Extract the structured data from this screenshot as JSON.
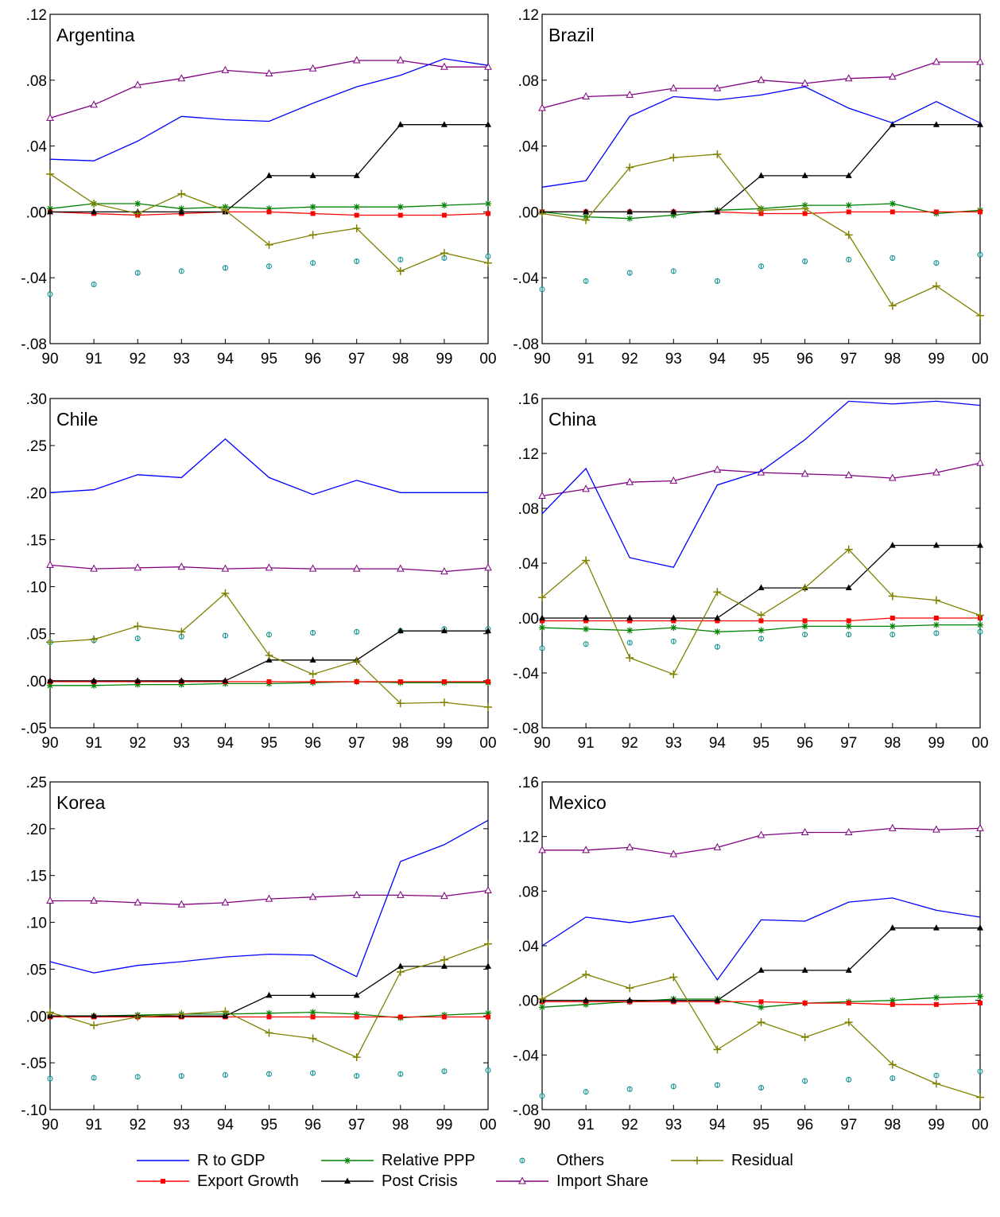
{
  "chart_data": [
    {
      "type": "line",
      "title": "Argentina",
      "categories": [
        "90",
        "91",
        "92",
        "93",
        "94",
        "95",
        "96",
        "97",
        "98",
        "99",
        "00"
      ],
      "ylim": [
        -0.08,
        0.12
      ],
      "yticks": [
        ".12",
        ".08",
        ".04",
        ".00",
        "-.04",
        "-.08"
      ],
      "ytick_values": [
        0.12,
        0.08,
        0.04,
        0.0,
        -0.04,
        -0.08
      ],
      "series": [
        {
          "name": "R to GDP",
          "values": [
            0.032,
            0.031,
            0.043,
            0.058,
            0.056,
            0.055,
            0.066,
            0.076,
            0.083,
            0.093,
            0.089
          ]
        },
        {
          "name": "Export Growth",
          "values": [
            0.0,
            -0.001,
            -0.002,
            -0.001,
            0.0,
            0.0,
            -0.001,
            -0.002,
            -0.002,
            -0.002,
            -0.001
          ]
        },
        {
          "name": "Relative PPP",
          "values": [
            0.002,
            0.005,
            0.005,
            0.002,
            0.003,
            0.002,
            0.003,
            0.003,
            0.003,
            0.004,
            0.005
          ]
        },
        {
          "name": "Post Crisis",
          "values": [
            0,
            0,
            0,
            0,
            0,
            0.022,
            0.022,
            0.022,
            0.053,
            0.053,
            0.053
          ]
        },
        {
          "name": "Others",
          "values": [
            -0.05,
            -0.044,
            -0.037,
            -0.036,
            -0.034,
            -0.033,
            -0.031,
            -0.03,
            -0.029,
            -0.028,
            -0.027
          ]
        },
        {
          "name": "Import Share",
          "values": [
            0.057,
            0.065,
            0.077,
            0.081,
            0.086,
            0.084,
            0.087,
            0.092,
            0.092,
            0.088,
            0.088
          ]
        },
        {
          "name": "Residual",
          "values": [
            0.023,
            0.005,
            -0.001,
            0.011,
            0.001,
            -0.02,
            -0.014,
            -0.01,
            -0.036,
            -0.025,
            -0.031
          ]
        }
      ]
    },
    {
      "type": "line",
      "title": "Brazil",
      "categories": [
        "90",
        "91",
        "92",
        "93",
        "94",
        "95",
        "96",
        "97",
        "98",
        "99",
        "00"
      ],
      "ylim": [
        -0.08,
        0.12
      ],
      "yticks": [
        ".12",
        ".08",
        ".04",
        ".00",
        "-.04",
        "-.08"
      ],
      "ytick_values": [
        0.12,
        0.08,
        0.04,
        0.0,
        -0.04,
        -0.08
      ],
      "series": [
        {
          "name": "R to GDP",
          "values": [
            0.015,
            0.019,
            0.058,
            0.07,
            0.068,
            0.071,
            0.076,
            0.063,
            0.054,
            0.067,
            0.054
          ]
        },
        {
          "name": "Export Growth",
          "values": [
            0.0,
            0.0,
            0.0,
            0.0,
            0.0,
            -0.001,
            -0.001,
            0.0,
            0.0,
            0.0,
            0.0
          ]
        },
        {
          "name": "Relative PPP",
          "values": [
            0.0,
            -0.003,
            -0.004,
            -0.002,
            0.001,
            0.002,
            0.004,
            0.004,
            0.005,
            -0.001,
            0.001
          ]
        },
        {
          "name": "Post Crisis",
          "values": [
            0,
            0,
            0,
            0,
            0,
            0.022,
            0.022,
            0.022,
            0.053,
            0.053,
            0.053
          ]
        },
        {
          "name": "Others",
          "values": [
            -0.047,
            -0.042,
            -0.037,
            -0.036,
            -0.042,
            -0.033,
            -0.03,
            -0.029,
            -0.028,
            -0.031,
            -0.026
          ]
        },
        {
          "name": "Import Share",
          "values": [
            0.063,
            0.07,
            0.071,
            0.075,
            0.075,
            0.08,
            0.078,
            0.081,
            0.082,
            0.091,
            0.091
          ]
        },
        {
          "name": "Residual",
          "values": [
            -0.001,
            -0.005,
            0.027,
            0.033,
            0.035,
            0.001,
            0.002,
            -0.014,
            -0.057,
            -0.045,
            -0.063
          ]
        }
      ]
    },
    {
      "type": "line",
      "title": "Chile",
      "categories": [
        "90",
        "91",
        "92",
        "93",
        "94",
        "95",
        "96",
        "97",
        "98",
        "99",
        "00"
      ],
      "ylim": [
        -0.05,
        0.3
      ],
      "yticks": [
        ".30",
        ".25",
        ".20",
        ".15",
        ".10",
        ".05",
        ".00",
        "-.05"
      ],
      "ytick_values": [
        0.3,
        0.25,
        0.2,
        0.15,
        0.1,
        0.05,
        0.0,
        -0.05
      ],
      "series": [
        {
          "name": "R to GDP",
          "values": [
            0.2,
            0.203,
            0.219,
            0.216,
            0.257,
            0.216,
            0.198,
            0.213,
            0.2,
            0.2,
            0.2
          ]
        },
        {
          "name": "Export Growth",
          "values": [
            -0.001,
            -0.001,
            -0.001,
            -0.001,
            -0.001,
            -0.001,
            -0.001,
            -0.001,
            -0.001,
            -0.001,
            -0.001
          ]
        },
        {
          "name": "Relative PPP",
          "values": [
            -0.005,
            -0.005,
            -0.004,
            -0.004,
            -0.003,
            -0.003,
            -0.002,
            -0.001,
            -0.002,
            -0.002,
            -0.002
          ]
        },
        {
          "name": "Post Crisis",
          "values": [
            0,
            0,
            0,
            0,
            0,
            0.022,
            0.022,
            0.022,
            0.053,
            0.053,
            0.053
          ]
        },
        {
          "name": "Others",
          "values": [
            0.041,
            0.043,
            0.045,
            0.047,
            0.048,
            0.049,
            0.051,
            0.052,
            0.053,
            0.055,
            0.055
          ]
        },
        {
          "name": "Import Share",
          "values": [
            0.123,
            0.119,
            0.12,
            0.121,
            0.119,
            0.12,
            0.119,
            0.119,
            0.119,
            0.116,
            0.12
          ]
        },
        {
          "name": "Residual",
          "values": [
            0.041,
            0.044,
            0.058,
            0.052,
            0.093,
            0.027,
            0.007,
            0.021,
            -0.024,
            -0.023,
            -0.028
          ]
        }
      ]
    },
    {
      "type": "line",
      "title": "China",
      "categories": [
        "90",
        "91",
        "92",
        "93",
        "94",
        "95",
        "96",
        "97",
        "98",
        "99",
        "00"
      ],
      "ylim": [
        -0.08,
        0.16
      ],
      "yticks": [
        ".16",
        ".12",
        ".08",
        ".04",
        ".00",
        "-.04",
        "-.08"
      ],
      "ytick_values": [
        0.16,
        0.12,
        0.08,
        0.04,
        0.0,
        -0.04,
        -0.08
      ],
      "series": [
        {
          "name": "R to GDP",
          "values": [
            0.076,
            0.109,
            0.044,
            0.037,
            0.097,
            0.107,
            0.13,
            0.158,
            0.156,
            0.158,
            0.155
          ]
        },
        {
          "name": "Export Growth",
          "values": [
            -0.002,
            -0.002,
            -0.002,
            -0.002,
            -0.002,
            -0.002,
            -0.002,
            -0.002,
            0.0,
            0.0,
            0.0
          ]
        },
        {
          "name": "Relative PPP",
          "values": [
            -0.007,
            -0.008,
            -0.009,
            -0.007,
            -0.01,
            -0.009,
            -0.006,
            -0.006,
            -0.006,
            -0.005,
            -0.005
          ]
        },
        {
          "name": "Post Crisis",
          "values": [
            0,
            0,
            0,
            0,
            0,
            0.022,
            0.022,
            0.022,
            0.053,
            0.053,
            0.053
          ]
        },
        {
          "name": "Others",
          "values": [
            -0.022,
            -0.019,
            -0.018,
            -0.017,
            -0.021,
            -0.015,
            -0.012,
            -0.012,
            -0.012,
            -0.011,
            -0.01
          ]
        },
        {
          "name": "Import Share",
          "values": [
            0.089,
            0.094,
            0.099,
            0.1,
            0.108,
            0.106,
            0.105,
            0.104,
            0.102,
            0.106,
            0.113
          ]
        },
        {
          "name": "Residual",
          "values": [
            0.015,
            0.042,
            -0.029,
            -0.041,
            0.019,
            0.002,
            0.022,
            0.05,
            0.016,
            0.013,
            0.002
          ]
        }
      ]
    },
    {
      "type": "line",
      "title": "Korea",
      "categories": [
        "90",
        "91",
        "92",
        "93",
        "94",
        "95",
        "96",
        "97",
        "98",
        "99",
        "00"
      ],
      "ylim": [
        -0.1,
        0.25
      ],
      "yticks": [
        ".25",
        ".20",
        ".15",
        ".10",
        ".05",
        ".00",
        "-.05",
        "-.10"
      ],
      "ytick_values": [
        0.25,
        0.2,
        0.15,
        0.1,
        0.05,
        0.0,
        -0.05,
        -0.1
      ],
      "series": [
        {
          "name": "R to GDP",
          "values": [
            0.058,
            0.046,
            0.054,
            0.058,
            0.063,
            0.066,
            0.065,
            0.042,
            0.165,
            0.183,
            0.209
          ]
        },
        {
          "name": "Export Growth",
          "values": [
            -0.001,
            -0.001,
            -0.001,
            -0.001,
            -0.001,
            -0.001,
            -0.001,
            -0.001,
            -0.001,
            -0.001,
            -0.001
          ]
        },
        {
          "name": "Relative PPP",
          "values": [
            0.0,
            0.0,
            0.001,
            0.002,
            0.002,
            0.003,
            0.004,
            0.002,
            -0.002,
            0.001,
            0.003
          ]
        },
        {
          "name": "Post Crisis",
          "values": [
            0,
            0,
            0,
            0,
            0,
            0.022,
            0.022,
            0.022,
            0.053,
            0.053,
            0.053
          ]
        },
        {
          "name": "Others",
          "values": [
            -0.067,
            -0.066,
            -0.065,
            -0.064,
            -0.063,
            -0.062,
            -0.061,
            -0.064,
            -0.062,
            -0.059,
            -0.058
          ]
        },
        {
          "name": "Import Share",
          "values": [
            0.123,
            0.123,
            0.121,
            0.119,
            0.121,
            0.125,
            0.127,
            0.129,
            0.129,
            0.128,
            0.134
          ]
        },
        {
          "name": "Residual",
          "values": [
            0.004,
            -0.01,
            -0.001,
            0.002,
            0.005,
            -0.018,
            -0.024,
            -0.044,
            0.047,
            0.06,
            0.077
          ]
        }
      ]
    },
    {
      "type": "line",
      "title": "Mexico",
      "categories": [
        "90",
        "91",
        "92",
        "93",
        "94",
        "95",
        "96",
        "97",
        "98",
        "99",
        "00"
      ],
      "ylim": [
        -0.08,
        0.16
      ],
      "yticks": [
        ".16",
        ".12",
        ".08",
        ".04",
        ".00",
        "-.04",
        "-.08"
      ],
      "ytick_values": [
        0.16,
        0.12,
        0.08,
        0.04,
        0.0,
        -0.04,
        -0.08
      ],
      "series": [
        {
          "name": "R to GDP",
          "values": [
            0.04,
            0.061,
            0.057,
            0.062,
            0.015,
            0.059,
            0.058,
            0.072,
            0.075,
            0.066,
            0.061
          ]
        },
        {
          "name": "Export Growth",
          "values": [
            -0.001,
            -0.001,
            -0.001,
            -0.001,
            -0.001,
            -0.001,
            -0.002,
            -0.002,
            -0.003,
            -0.003,
            -0.002
          ]
        },
        {
          "name": "Relative PPP",
          "values": [
            -0.005,
            -0.003,
            -0.001,
            0.001,
            0.001,
            -0.005,
            -0.002,
            -0.001,
            0.0,
            0.002,
            0.003
          ]
        },
        {
          "name": "Post Crisis",
          "values": [
            0,
            0,
            0,
            0,
            0,
            0.022,
            0.022,
            0.022,
            0.053,
            0.053,
            0.053
          ]
        },
        {
          "name": "Others",
          "values": [
            -0.07,
            -0.067,
            -0.065,
            -0.063,
            -0.062,
            -0.064,
            -0.059,
            -0.058,
            -0.057,
            -0.055,
            -0.052
          ]
        },
        {
          "name": "Import Share",
          "values": [
            0.11,
            0.11,
            0.112,
            0.107,
            0.112,
            0.121,
            0.123,
            0.123,
            0.126,
            0.125,
            0.126
          ]
        },
        {
          "name": "Residual",
          "values": [
            0.001,
            0.019,
            0.009,
            0.017,
            -0.036,
            -0.016,
            -0.027,
            -0.016,
            -0.047,
            -0.061,
            -0.071
          ]
        }
      ]
    }
  ],
  "legend": [
    {
      "name": "R to GDP",
      "color": "#0000ff",
      "marker": "none"
    },
    {
      "name": "Relative PPP",
      "color": "#008000",
      "marker": "asterisk"
    },
    {
      "name": "Others",
      "color": "#008b8b",
      "marker": "circle"
    },
    {
      "name": "Residual",
      "color": "#808000",
      "marker": "plus"
    },
    {
      "name": "Export Growth",
      "color": "#ff0000",
      "marker": "square"
    },
    {
      "name": "Post Crisis",
      "color": "#000000",
      "marker": "triangle-filled"
    },
    {
      "name": "Import Share",
      "color": "#800080",
      "marker": "triangle-open"
    }
  ],
  "series_style": {
    "R to GDP": {
      "color": "#0000ff",
      "marker": "none",
      "line": true
    },
    "Export Growth": {
      "color": "#ff0000",
      "marker": "square",
      "line": true
    },
    "Relative PPP": {
      "color": "#008000",
      "marker": "asterisk",
      "line": true
    },
    "Post Crisis": {
      "color": "#000000",
      "marker": "triangle-filled",
      "line": true
    },
    "Others": {
      "color": "#008b8b",
      "marker": "circle",
      "line": false
    },
    "Import Share": {
      "color": "#800080",
      "marker": "triangle-open",
      "line": true
    },
    "Residual": {
      "color": "#808000",
      "marker": "plus",
      "line": true
    }
  }
}
